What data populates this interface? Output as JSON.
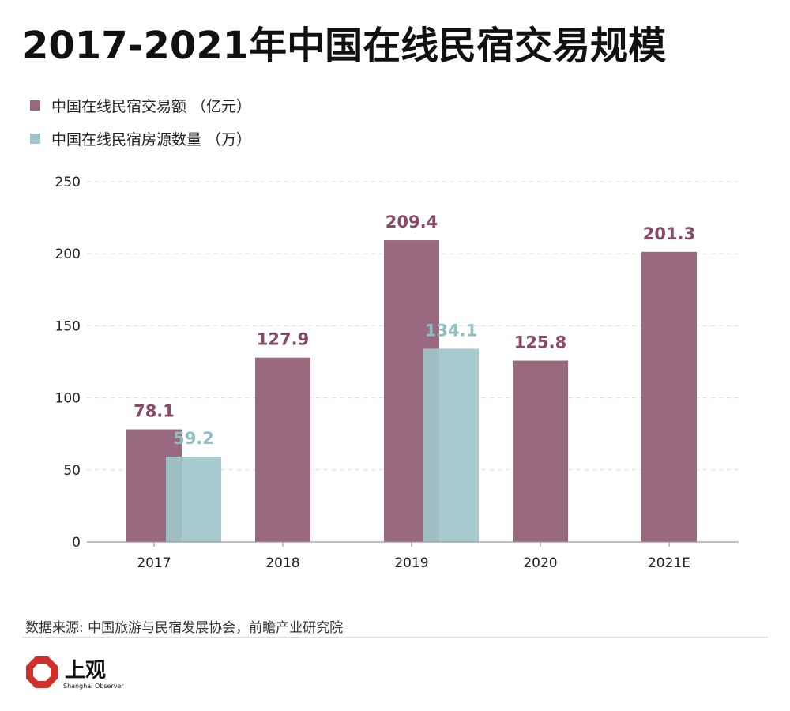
{
  "title": "2017-2021年中国在线民宿交易规模",
  "legend": [
    {
      "label": "中国在线民宿交易额 （亿元）",
      "color": "#99697f"
    },
    {
      "label": "中国在线民宿房源数量 （万）",
      "color": "#9ec6ca"
    }
  ],
  "source": "数据来源: 中国旅游与民宿发展协会，前瞻产业研究院",
  "brand": {
    "name": "上观",
    "sub": "Shanghai Observer",
    "icon": "octagon-logo-icon",
    "color": "#d0302b"
  },
  "chart_data": {
    "type": "bar",
    "categories": [
      "2017",
      "2018",
      "2019",
      "2020",
      "2021E"
    ],
    "series": [
      {
        "name": "中国在线民宿交易额 （亿元）",
        "values": [
          78.1,
          127.9,
          209.4,
          125.8,
          201.3
        ],
        "labels": [
          "78.1",
          "127.9",
          "209.4",
          "125.8",
          "201.3"
        ],
        "color": "#99697f",
        "label_color": "#8a4a66"
      },
      {
        "name": "中国在线民宿房源数量 （万）",
        "values": [
          59.2,
          null,
          134.1,
          null,
          null
        ],
        "labels": [
          "59.2",
          "",
          "134.1",
          "",
          ""
        ],
        "color": "#9ec6ca",
        "label_color": "#8fbfc4"
      }
    ],
    "yticks": [
      "0",
      "50",
      "100",
      "150",
      "200",
      "250"
    ],
    "ylim": [
      0,
      250
    ],
    "grid": true
  }
}
